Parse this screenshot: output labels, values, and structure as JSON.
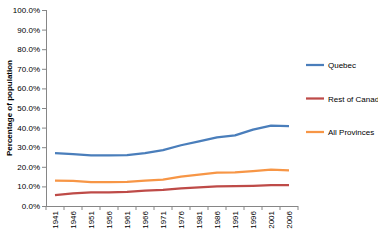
{
  "chart_data": {
    "type": "line",
    "y_label": "Percentage of population",
    "categories": [
      "1941",
      "1946",
      "1951",
      "1956",
      "1961",
      "1966",
      "1971",
      "1976",
      "1981",
      "1986",
      "1991",
      "1996",
      "2001",
      "2006"
    ],
    "series": [
      {
        "name": "Quebec",
        "color": "#4a7ebb",
        "values": [
          27,
          26.5,
          25.8,
          25.8,
          25.9,
          27,
          28.5,
          31,
          33,
          35,
          36,
          39,
          41,
          40.8
        ]
      },
      {
        "name": "Rest of Canada",
        "color": "#be4b48",
        "values": [
          5.5,
          6.5,
          7,
          7,
          7.2,
          7.8,
          8.2,
          9,
          9.5,
          10,
          10.2,
          10.3,
          10.6,
          10.6
        ]
      },
      {
        "name": "All Provinces",
        "color": "#f79646",
        "values": [
          13,
          12.8,
          12.2,
          12.2,
          12.3,
          13,
          13.5,
          15,
          16,
          17,
          17.2,
          17.8,
          18.5,
          18.2
        ]
      }
    ],
    "ylim": [
      0,
      100
    ],
    "yticks": [
      {
        "value": 0,
        "label": "0.0%"
      },
      {
        "value": 10,
        "label": "10.0%"
      },
      {
        "value": 20,
        "label": "20.0%"
      },
      {
        "value": 30,
        "label": "30.0%"
      },
      {
        "value": 40,
        "label": "40.0%"
      },
      {
        "value": 50,
        "label": "50.0%"
      },
      {
        "value": 60,
        "label": "60.0%"
      },
      {
        "value": 70,
        "label": "70.0%"
      },
      {
        "value": 80,
        "label": "80.0%"
      },
      {
        "value": 90,
        "label": "90.0%"
      },
      {
        "value": 100,
        "label": "100.0%"
      }
    ],
    "grid": false,
    "legend": "right"
  }
}
